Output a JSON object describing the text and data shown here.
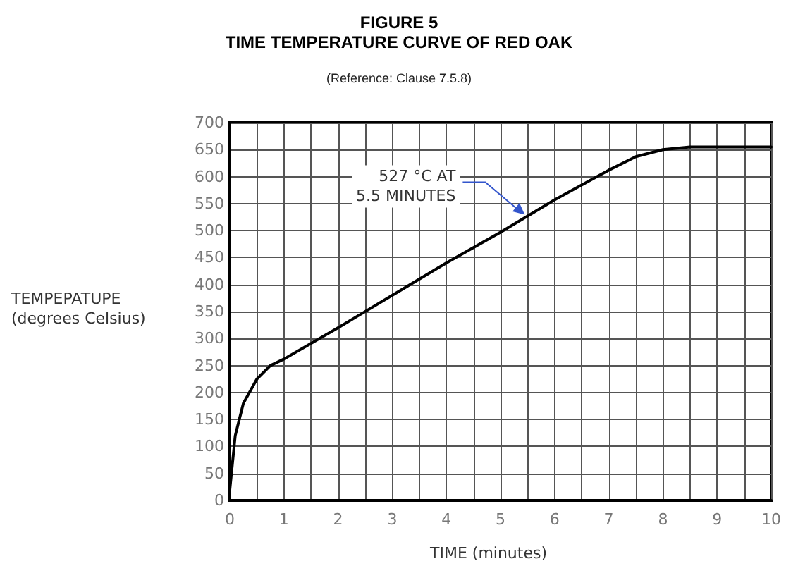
{
  "chart_data": {
    "type": "line",
    "title": "FIGURE 5\nTIME TEMPERATURE CURVE OF RED OAK",
    "subtitle": "(Reference: Clause 7.5.8)",
    "xlabel": "TIME (minutes)",
    "ylabel": "TEMPEPATUPE\n(degrees Celsius)",
    "x": [
      0,
      0.1,
      0.25,
      0.5,
      0.75,
      1,
      2,
      3,
      4,
      5,
      5.5,
      6,
      7,
      7.5,
      8,
      8.5,
      10
    ],
    "series": [
      {
        "color": "#000000",
        "values": [
          20,
          120,
          180,
          225,
          250,
          262,
          320,
          380,
          440,
          497,
          527,
          557,
          612,
          637,
          650,
          655,
          655
        ]
      }
    ],
    "xlim": [
      0,
      10
    ],
    "xticks": [
      0,
      {
        "value": 0.5,
        "label": null
      },
      1,
      {
        "value": 1.5,
        "label": null
      },
      2,
      {
        "value": 2.5,
        "label": null
      },
      3,
      {
        "value": 3.5,
        "label": null
      },
      4,
      {
        "value": 4.5,
        "label": null
      },
      5,
      {
        "value": 5.5,
        "label": null
      },
      6,
      {
        "value": 6.5,
        "label": null
      },
      7,
      {
        "value": 7.5,
        "label": null
      },
      8,
      {
        "value": 8.5,
        "label": null
      },
      9,
      {
        "value": 9.5,
        "label": null
      },
      10
    ],
    "ylim": [
      0,
      700
    ],
    "yticks": [
      0,
      50,
      100,
      150,
      200,
      250,
      300,
      350,
      400,
      450,
      500,
      550,
      600,
      650,
      700
    ],
    "grid": true,
    "marker": "none",
    "line_style": "solid",
    "annotations": [
      {
        "text": "527 °C AT\n5.5 MINUTES",
        "x": 5.5,
        "y": 527
      }
    ]
  }
}
